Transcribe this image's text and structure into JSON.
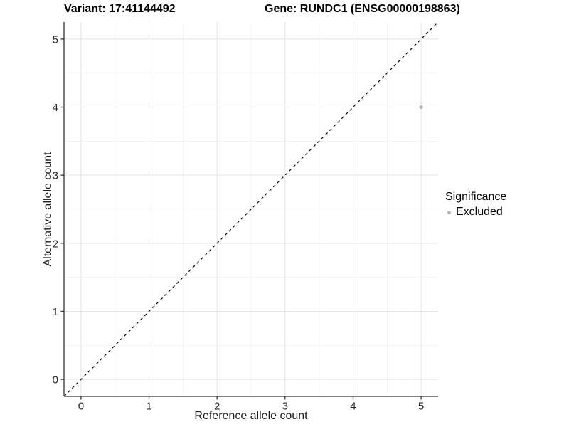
{
  "titles": {
    "variant": "Variant: 17:41144492",
    "gene": "Gene: RUNDC1 (ENSG00000198863)"
  },
  "chart_data": {
    "type": "scatter",
    "title": "Variant: 17:41144492   Gene: RUNDC1 (ENSG00000198863)",
    "xlabel": "Reference allele count",
    "ylabel": "Alternative allele count",
    "xlim": [
      -0.25,
      5.25
    ],
    "ylim": [
      -0.25,
      5.25
    ],
    "xticks": [
      0,
      1,
      2,
      3,
      4,
      5
    ],
    "yticks": [
      0,
      1,
      2,
      3,
      4,
      5
    ],
    "minor_ticks": [
      0.5,
      1.5,
      2.5,
      3.5,
      4.5
    ],
    "grid": true,
    "points": [
      {
        "x": 5,
        "y": 4,
        "significance": "Excluded",
        "color": "#b4b4b4"
      }
    ],
    "reference_line": {
      "type": "identity",
      "slope": 1,
      "intercept": 0,
      "style": "dashed",
      "color": "#000000"
    },
    "legend": {
      "position": "right",
      "title": "Significance",
      "items": [
        {
          "label": "Excluded",
          "color": "#b4b4b4"
        }
      ]
    }
  }
}
